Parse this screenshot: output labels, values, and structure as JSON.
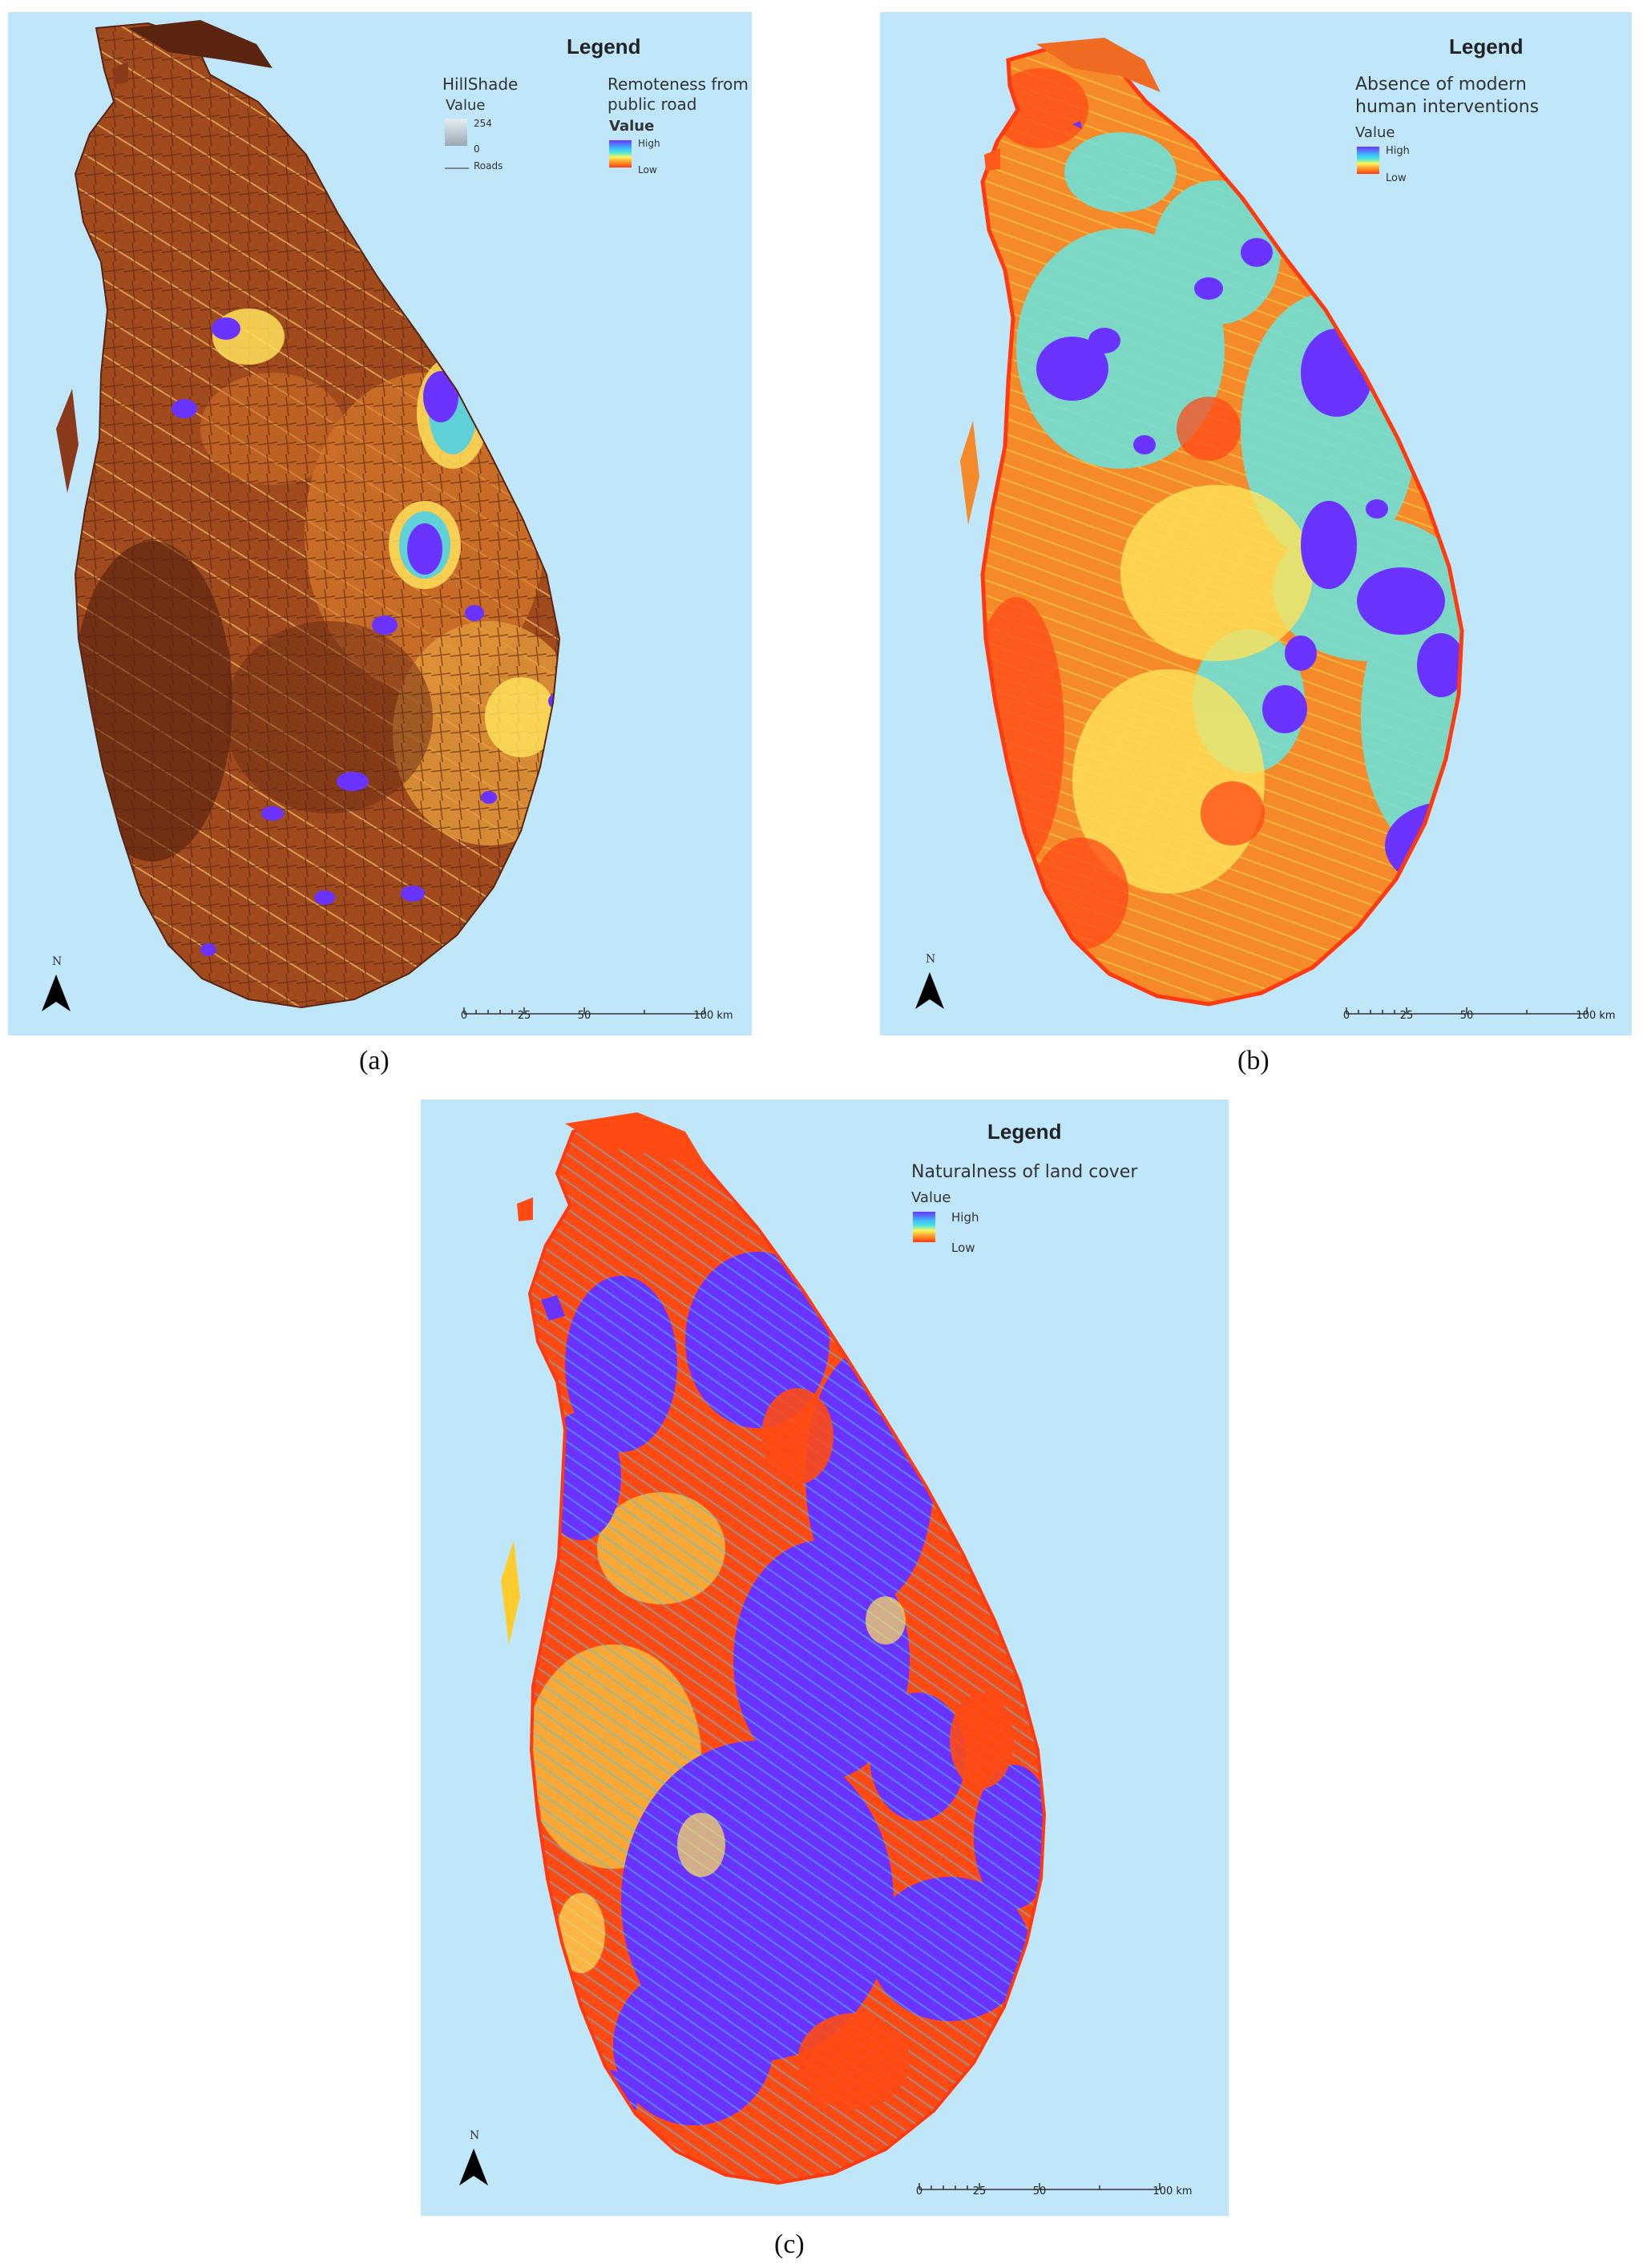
{
  "panels": {
    "a": {
      "caption": "(a)",
      "legend_title": "Legend",
      "hillshade": {
        "title": "HillShade",
        "value_label": "Value",
        "max": "254",
        "min": "0",
        "roads": "Roads"
      },
      "remoteness": {
        "title_line1": "Remoteness from",
        "title_line2": "public road",
        "value_label": "Value",
        "high": "High",
        "low": "Low"
      },
      "north": "N",
      "scale": [
        "0",
        "25",
        "50",
        "100 km"
      ]
    },
    "b": {
      "caption": "(b)",
      "legend_title": "Legend",
      "layer": {
        "title_line1": "Absence of modern",
        "title_line2": "human interventions",
        "value_label": "Value",
        "high": "High",
        "low": "Low"
      },
      "north": "N",
      "scale": [
        "0",
        "25",
        "50",
        "100 km"
      ]
    },
    "c": {
      "caption": "(c)",
      "legend_title": "Legend",
      "layer": {
        "title": "Naturalness of land cover",
        "value_label": "Value",
        "high": "High",
        "low": "Low"
      },
      "north": "N",
      "scale": [
        "0",
        "25",
        "50",
        "100 km"
      ]
    }
  },
  "colors": {
    "sea": "#bfe6f9",
    "ramp_high": "#6a33ff",
    "ramp_mid": "#48e6dd",
    "ramp_low": "#ff3a10",
    "hillshade_dark": "#8a3a1a"
  }
}
